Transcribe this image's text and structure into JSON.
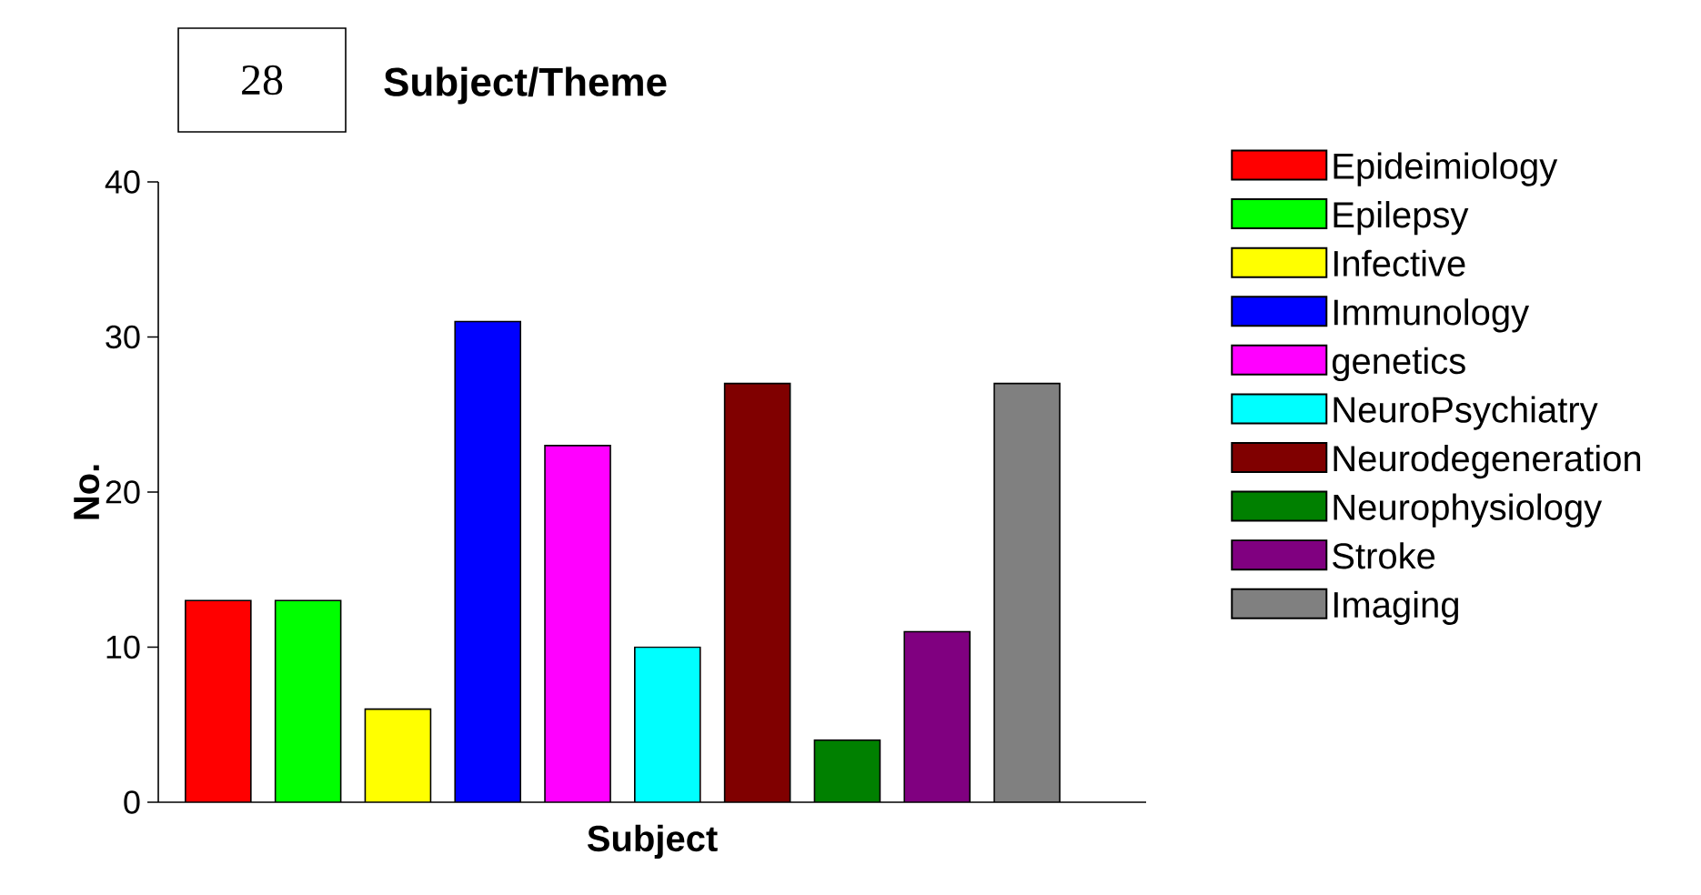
{
  "chart_data": {
    "type": "bar",
    "title": "Subject/Theme",
    "xlabel": "Subject",
    "ylabel": "No.",
    "annotations": [
      "28"
    ],
    "categories": [
      null
    ],
    "series": [
      {
        "name": "Epideimiology",
        "color": "#ff0000",
        "values": [
          13
        ]
      },
      {
        "name": "Epilepsy",
        "color": "#00ff00",
        "values": [
          13
        ]
      },
      {
        "name": "Infective",
        "color": "#ffff00",
        "values": [
          6
        ]
      },
      {
        "name": "Immunology",
        "color": "#0000ff",
        "values": [
          31
        ]
      },
      {
        "name": "genetics",
        "color": "#ff00ff",
        "values": [
          23
        ]
      },
      {
        "name": "NeuroPsychiatry",
        "color": "#00ffff",
        "values": [
          10
        ]
      },
      {
        "name": "Neurodegeneration",
        "color": "#800000",
        "values": [
          27
        ]
      },
      {
        "name": "Neurophysiology",
        "color": "#008000",
        "values": [
          4
        ]
      },
      {
        "name": "Stroke",
        "color": "#800080",
        "values": [
          11
        ]
      },
      {
        "name": "Imaging",
        "color": "#808080",
        "values": [
          27
        ]
      }
    ],
    "ylim": [
      0,
      40
    ],
    "yticks": [
      0,
      10,
      20,
      30,
      40
    ],
    "grid": false,
    "legend": "right"
  }
}
